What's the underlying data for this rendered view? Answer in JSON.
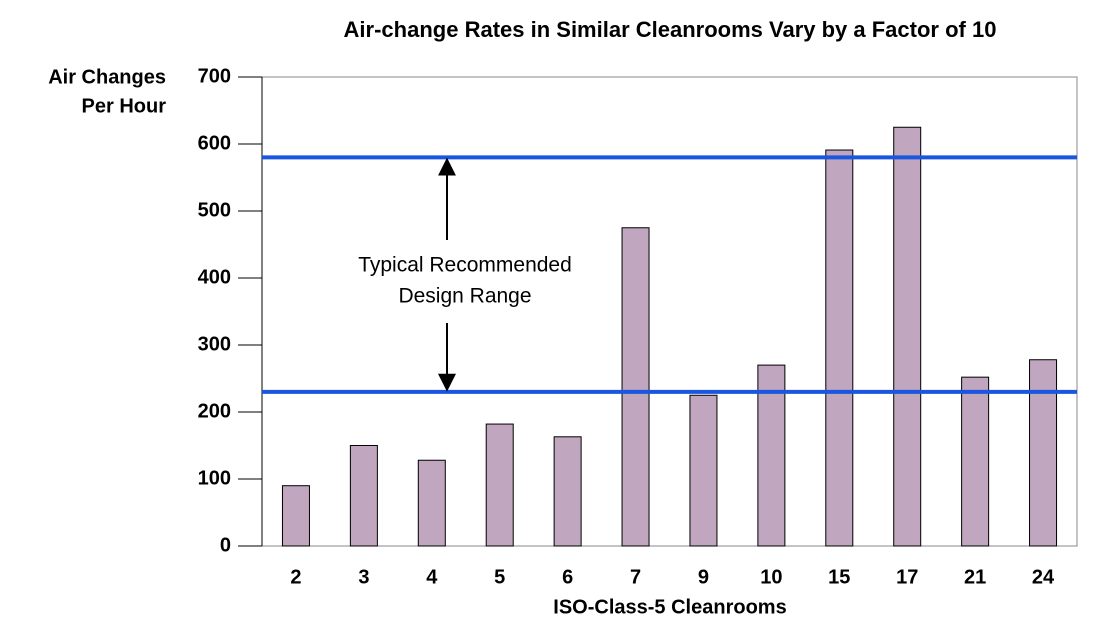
{
  "chart_data": {
    "type": "bar",
    "title": "Air-change Rates in Similar Cleanrooms Vary by a Factor of 10",
    "y_label": [
      "Air Changes",
      "Per Hour"
    ],
    "x_label": "ISO-Class-5 Cleanrooms",
    "categories": [
      "2",
      "3",
      "4",
      "5",
      "6",
      "7",
      "9",
      "10",
      "15",
      "17",
      "21",
      "24"
    ],
    "values": [
      90,
      150,
      128,
      182,
      163,
      475,
      225,
      270,
      591,
      625,
      252,
      278
    ],
    "color": "#c0a6bf",
    "ylim": [
      0,
      700
    ],
    "yticks": [
      0,
      100,
      200,
      300,
      400,
      500,
      600,
      700
    ],
    "reference_lines": [
      {
        "value": 580,
        "color": "#1a56e0"
      },
      {
        "value": 230,
        "color": "#1a56e0"
      }
    ],
    "annotation": [
      "Typical Recommended",
      "Design Range"
    ]
  }
}
